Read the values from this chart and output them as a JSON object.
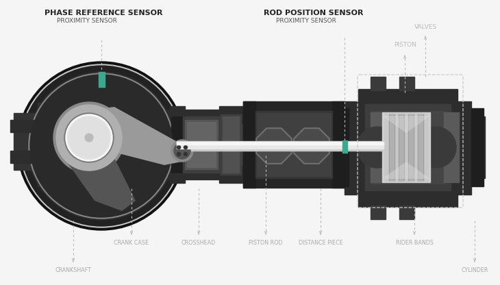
{
  "background_color": "#f5f5f5",
  "title_left": "PHASE REFERENCE SENSOR",
  "subtitle_left": "PROXIMITY SENSOR",
  "title_right": "ROD POSITION SENSOR",
  "subtitle_right": "PROXIMITY SENSOR",
  "label_valves": "VALVES",
  "label_piston": "PISTON",
  "label_crankshaft": "CRANKSHAFT",
  "label_crankcase": "CRANK CASE",
  "label_crosshead": "CROSSHEAD",
  "label_pistonrod": "PISTON ROD",
  "label_distancepiece": "DISTANCE PIECE",
  "label_riderbands": "RIDER BANDS",
  "label_cylinder": "CYLINDER",
  "teal": "#3aaa8e",
  "label_color": "#aaaaaa",
  "dash_color": "#bbbbbb"
}
